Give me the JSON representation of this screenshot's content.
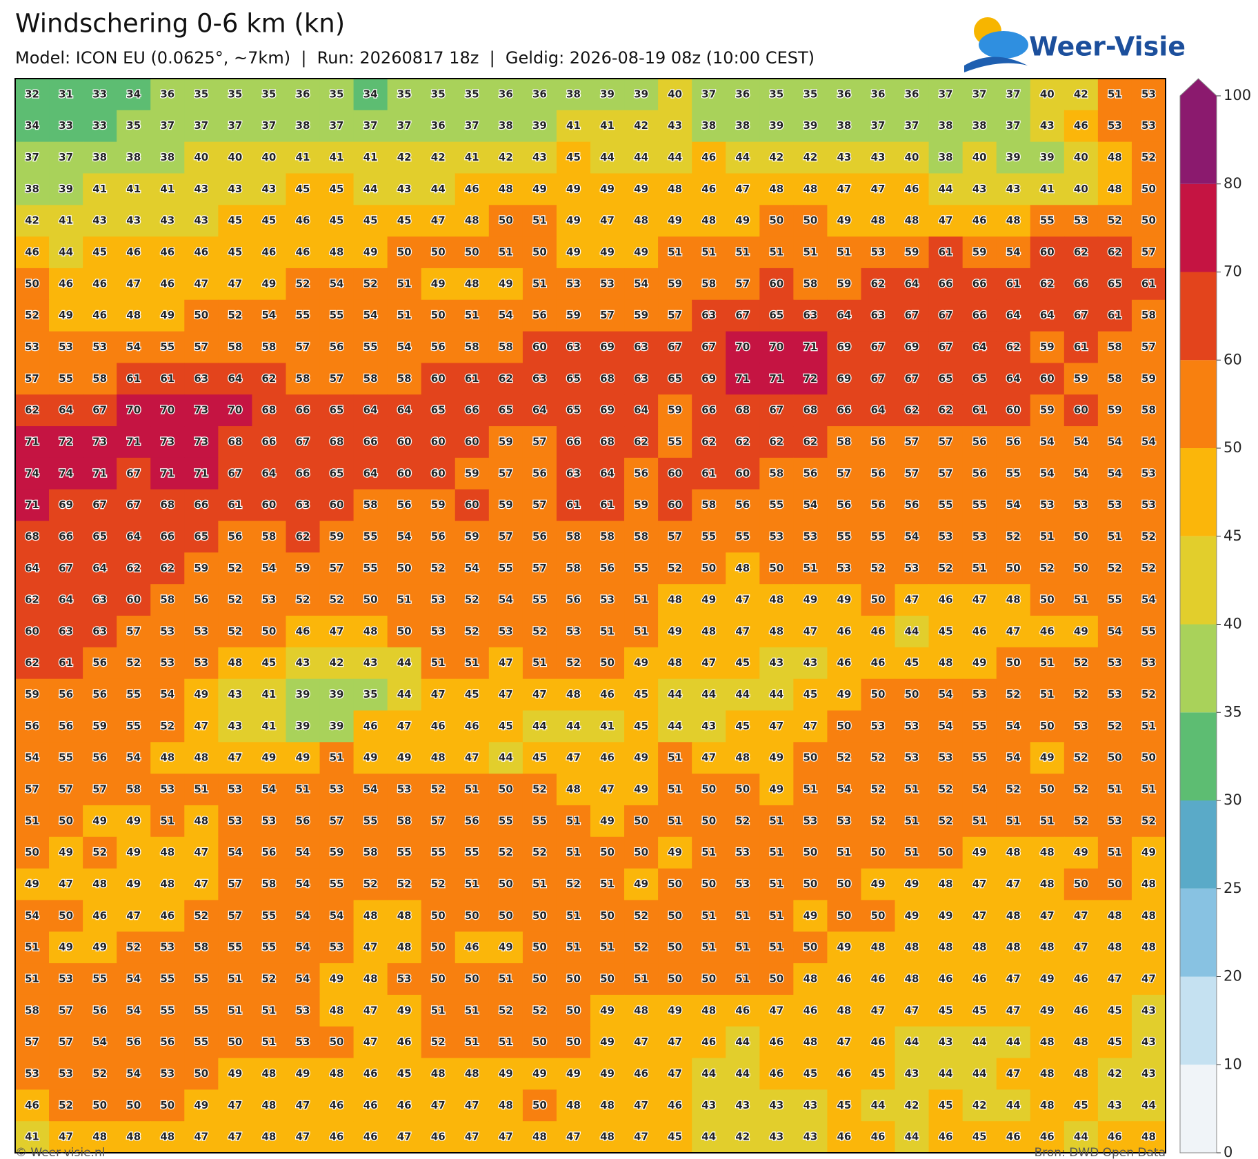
{
  "header": {
    "title": "Windschering 0-6 km (kn)",
    "subtitle": "Model: ICON EU (0.0625°, ~7km)  |  Run: 20260817 18z  |  Geldig: 2026-08-19 08z (10:00 CEST)"
  },
  "logo": {
    "text": "Weer-Visie"
  },
  "map": {
    "grid": [
      [
        32,
        31,
        33,
        34,
        36,
        35,
        35,
        35,
        36,
        35,
        34,
        35,
        35,
        35,
        36,
        36,
        38,
        39,
        39,
        40,
        37,
        36,
        35,
        35,
        36,
        36,
        36,
        37,
        37,
        37,
        40,
        42,
        51,
        53
      ],
      [
        34,
        33,
        33,
        35,
        37,
        37,
        37,
        37,
        38,
        37,
        37,
        37,
        36,
        37,
        38,
        39,
        41,
        41,
        42,
        43,
        38,
        38,
        39,
        39,
        38,
        37,
        37,
        38,
        38,
        37,
        43,
        46,
        53,
        53
      ],
      [
        37,
        37,
        38,
        38,
        38,
        40,
        40,
        40,
        41,
        41,
        41,
        42,
        42,
        41,
        42,
        43,
        45,
        44,
        44,
        44,
        46,
        44,
        42,
        42,
        43,
        43,
        40,
        38,
        40,
        39,
        39,
        40,
        48,
        52
      ],
      [
        38,
        39,
        41,
        41,
        41,
        43,
        43,
        43,
        45,
        45,
        44,
        43,
        44,
        46,
        48,
        49,
        49,
        49,
        49,
        48,
        46,
        47,
        48,
        48,
        47,
        47,
        46,
        44,
        43,
        43,
        41,
        40,
        48,
        50
      ],
      [
        42,
        41,
        43,
        43,
        43,
        43,
        45,
        45,
        46,
        45,
        45,
        45,
        47,
        48,
        50,
        51,
        49,
        47,
        48,
        49,
        48,
        49,
        50,
        50,
        49,
        48,
        48,
        47,
        46,
        48,
        55,
        53,
        52,
        50
      ],
      [
        46,
        44,
        45,
        46,
        46,
        46,
        45,
        46,
        46,
        48,
        49,
        50,
        50,
        50,
        51,
        50,
        49,
        49,
        49,
        51,
        51,
        51,
        51,
        51,
        51,
        53,
        59,
        61,
        59,
        54,
        60,
        62,
        62,
        57
      ],
      [
        50,
        46,
        46,
        47,
        46,
        47,
        47,
        49,
        52,
        54,
        52,
        51,
        49,
        48,
        49,
        51,
        53,
        53,
        54,
        59,
        58,
        57,
        60,
        58,
        59,
        62,
        64,
        66,
        66,
        61,
        62,
        66,
        65,
        61
      ],
      [
        52,
        49,
        46,
        48,
        49,
        50,
        52,
        54,
        55,
        55,
        54,
        51,
        50,
        51,
        54,
        56,
        59,
        57,
        59,
        57,
        63,
        67,
        65,
        63,
        64,
        63,
        67,
        67,
        66,
        64,
        64,
        67,
        61,
        58
      ],
      [
        53,
        53,
        53,
        54,
        55,
        57,
        58,
        58,
        57,
        56,
        55,
        54,
        56,
        58,
        58,
        60,
        63,
        69,
        63,
        67,
        67,
        70,
        70,
        71,
        69,
        67,
        69,
        67,
        64,
        62,
        59,
        61,
        58,
        57
      ],
      [
        57,
        55,
        58,
        61,
        61,
        63,
        64,
        62,
        58,
        57,
        58,
        58,
        60,
        61,
        62,
        63,
        65,
        68,
        63,
        65,
        69,
        71,
        71,
        72,
        69,
        67,
        67,
        65,
        65,
        64,
        60,
        59,
        58,
        59
      ],
      [
        62,
        64,
        67,
        70,
        70,
        73,
        70,
        68,
        66,
        65,
        64,
        64,
        65,
        66,
        65,
        64,
        65,
        69,
        64,
        59,
        66,
        68,
        67,
        68,
        66,
        64,
        62,
        62,
        61,
        60,
        59,
        60,
        59,
        58
      ],
      [
        71,
        72,
        73,
        71,
        73,
        73,
        68,
        66,
        67,
        68,
        66,
        60,
        60,
        60,
        59,
        57,
        66,
        68,
        62,
        55,
        62,
        62,
        62,
        62,
        58,
        56,
        57,
        57,
        56,
        56,
        54,
        54,
        54,
        54
      ],
      [
        74,
        74,
        71,
        67,
        71,
        71,
        67,
        64,
        66,
        65,
        64,
        60,
        60,
        59,
        57,
        56,
        63,
        64,
        56,
        60,
        61,
        60,
        58,
        56,
        57,
        56,
        57,
        57,
        56,
        55,
        54,
        54,
        54,
        53
      ],
      [
        71,
        69,
        67,
        67,
        68,
        66,
        61,
        60,
        63,
        60,
        58,
        56,
        59,
        60,
        59,
        57,
        61,
        61,
        59,
        60,
        58,
        56,
        55,
        54,
        56,
        56,
        56,
        55,
        55,
        54,
        53,
        53,
        53,
        53
      ],
      [
        68,
        66,
        65,
        64,
        66,
        65,
        56,
        58,
        62,
        59,
        55,
        54,
        56,
        59,
        57,
        56,
        58,
        58,
        58,
        57,
        55,
        55,
        53,
        53,
        55,
        55,
        54,
        53,
        53,
        52,
        51,
        50,
        51,
        52
      ],
      [
        64,
        67,
        64,
        62,
        62,
        59,
        52,
        54,
        59,
        57,
        55,
        50,
        52,
        54,
        55,
        57,
        58,
        56,
        55,
        52,
        50,
        48,
        50,
        51,
        53,
        52,
        53,
        52,
        51,
        50,
        52,
        50,
        52,
        52
      ],
      [
        62,
        64,
        63,
        60,
        58,
        56,
        52,
        53,
        52,
        52,
        50,
        51,
        53,
        52,
        54,
        55,
        56,
        53,
        51,
        48,
        49,
        47,
        48,
        49,
        49,
        50,
        47,
        46,
        47,
        48,
        50,
        51,
        55,
        54
      ],
      [
        60,
        63,
        63,
        57,
        53,
        53,
        52,
        50,
        46,
        47,
        48,
        50,
        53,
        52,
        53,
        52,
        53,
        51,
        51,
        49,
        48,
        47,
        48,
        47,
        46,
        46,
        44,
        45,
        46,
        47,
        46,
        49,
        54,
        55
      ],
      [
        62,
        61,
        56,
        52,
        53,
        53,
        48,
        45,
        43,
        42,
        43,
        44,
        51,
        51,
        47,
        51,
        52,
        50,
        49,
        48,
        47,
        45,
        43,
        43,
        46,
        46,
        45,
        48,
        49,
        50,
        51,
        52,
        53,
        53
      ],
      [
        59,
        56,
        56,
        55,
        54,
        49,
        43,
        41,
        39,
        39,
        35,
        44,
        47,
        45,
        47,
        47,
        48,
        46,
        45,
        44,
        44,
        44,
        44,
        45,
        49,
        50,
        50,
        54,
        53,
        52,
        51,
        52,
        53,
        52
      ],
      [
        56,
        56,
        59,
        55,
        52,
        47,
        43,
        41,
        39,
        39,
        46,
        47,
        46,
        46,
        45,
        44,
        44,
        41,
        45,
        44,
        43,
        45,
        47,
        47,
        50,
        53,
        53,
        54,
        55,
        54,
        50,
        53,
        52,
        51
      ],
      [
        54,
        55,
        56,
        54,
        48,
        48,
        47,
        49,
        49,
        51,
        49,
        49,
        48,
        47,
        44,
        45,
        47,
        46,
        49,
        51,
        47,
        48,
        49,
        50,
        52,
        52,
        53,
        53,
        55,
        54,
        49,
        52,
        50,
        50
      ],
      [
        57,
        57,
        57,
        58,
        53,
        51,
        53,
        54,
        51,
        53,
        54,
        53,
        52,
        51,
        50,
        52,
        48,
        47,
        49,
        51,
        50,
        50,
        49,
        51,
        54,
        52,
        51,
        52,
        54,
        52,
        50,
        52,
        51,
        51
      ],
      [
        51,
        50,
        49,
        49,
        51,
        48,
        53,
        53,
        56,
        57,
        55,
        58,
        57,
        56,
        55,
        55,
        51,
        49,
        50,
        51,
        50,
        52,
        51,
        53,
        53,
        52,
        51,
        52,
        51,
        51,
        51,
        52,
        53,
        52
      ],
      [
        50,
        49,
        52,
        49,
        48,
        47,
        54,
        56,
        54,
        59,
        58,
        55,
        55,
        55,
        52,
        52,
        51,
        50,
        50,
        49,
        51,
        53,
        51,
        50,
        51,
        50,
        51,
        50,
        49,
        48,
        48,
        49,
        51,
        49
      ],
      [
        49,
        47,
        48,
        49,
        48,
        47,
        57,
        58,
        54,
        55,
        52,
        52,
        52,
        51,
        50,
        51,
        52,
        51,
        49,
        50,
        50,
        53,
        51,
        50,
        50,
        49,
        49,
        48,
        47,
        47,
        48,
        50,
        50,
        48
      ],
      [
        54,
        50,
        46,
        47,
        46,
        52,
        57,
        55,
        54,
        54,
        48,
        48,
        50,
        50,
        50,
        50,
        51,
        50,
        52,
        50,
        51,
        51,
        51,
        49,
        50,
        50,
        49,
        49,
        47,
        48,
        47,
        47,
        48,
        48
      ],
      [
        51,
        49,
        49,
        52,
        53,
        58,
        55,
        55,
        54,
        53,
        47,
        48,
        50,
        46,
        49,
        50,
        51,
        51,
        52,
        50,
        51,
        51,
        51,
        50,
        49,
        48,
        48,
        48,
        48,
        48,
        48,
        47,
        48,
        48
      ],
      [
        51,
        53,
        55,
        54,
        55,
        55,
        51,
        52,
        54,
        49,
        48,
        53,
        50,
        50,
        51,
        50,
        50,
        50,
        51,
        50,
        50,
        51,
        50,
        48,
        46,
        46,
        48,
        46,
        46,
        47,
        49,
        46,
        47,
        47
      ],
      [
        58,
        57,
        56,
        54,
        55,
        55,
        51,
        51,
        53,
        48,
        47,
        49,
        51,
        51,
        52,
        52,
        50,
        49,
        48,
        49,
        48,
        46,
        47,
        46,
        48,
        47,
        47,
        45,
        45,
        47,
        49,
        46,
        45,
        43
      ],
      [
        57,
        57,
        54,
        56,
        56,
        55,
        50,
        51,
        53,
        50,
        47,
        46,
        52,
        51,
        51,
        50,
        50,
        49,
        47,
        47,
        46,
        44,
        46,
        48,
        47,
        46,
        44,
        43,
        44,
        44,
        48,
        48,
        45,
        43
      ],
      [
        53,
        53,
        52,
        54,
        53,
        50,
        49,
        48,
        49,
        48,
        46,
        45,
        48,
        48,
        49,
        49,
        49,
        49,
        46,
        47,
        44,
        44,
        46,
        45,
        46,
        45,
        43,
        44,
        44,
        47,
        48,
        48,
        42,
        43
      ],
      [
        46,
        52,
        50,
        50,
        50,
        49,
        47,
        48,
        47,
        46,
        46,
        46,
        47,
        47,
        48,
        50,
        48,
        48,
        47,
        46,
        43,
        43,
        43,
        43,
        45,
        44,
        42,
        45,
        42,
        44,
        48,
        45,
        43,
        44
      ],
      [
        41,
        47,
        48,
        48,
        48,
        47,
        47,
        48,
        47,
        46,
        46,
        47,
        46,
        47,
        47,
        48,
        47,
        48,
        47,
        45,
        44,
        42,
        43,
        43,
        46,
        46,
        44,
        46,
        45,
        46,
        46,
        44,
        46,
        48
      ]
    ]
  },
  "colorbar": {
    "levels": [
      0,
      10,
      20,
      25,
      30,
      35,
      40,
      45,
      50,
      60,
      70,
      80,
      100
    ],
    "colors": [
      "#f0f4f8",
      "#c5e1f1",
      "#88c2e2",
      "#5aaac8",
      "#5dbd72",
      "#a9d25a",
      "#e2ce2c",
      "#fbb60a",
      "#f8800f",
      "#e3441c",
      "#c51442",
      "#8b1a6e"
    ]
  },
  "footer": {
    "left": "© Weer-visie.nl",
    "right": "Bron: DWD Open Data"
  }
}
